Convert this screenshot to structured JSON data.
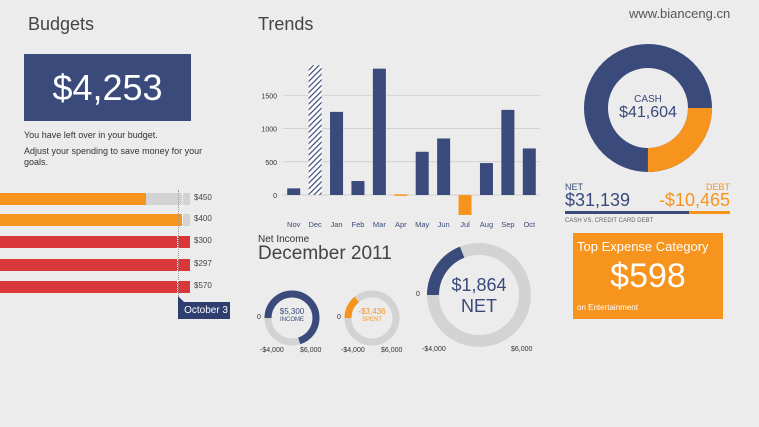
{
  "watermark": "www.bianceng.cn",
  "budgets": {
    "title": "Budgets",
    "amount": "$4,253",
    "line1": "You have left over in your budget.",
    "line2": "Adjust your spending to save money for your",
    "line3": "goals.",
    "bars": [
      {
        "label": "$450",
        "fraction": 0.77,
        "color": "#f7941d",
        "marker": 0.96
      },
      {
        "label": "$400",
        "fraction": 0.96,
        "color": "#f7941d",
        "marker": 0.96
      },
      {
        "label": "$300",
        "fraction": 1.0,
        "color": "#d9383a",
        "marker": 0.93
      },
      {
        "label": "$297",
        "fraction": 1.0,
        "color": "#d9383a",
        "marker": 0.93
      },
      {
        "label": "$570",
        "fraction": 1.0,
        "color": "#d9383a",
        "marker": 0.93
      }
    ],
    "date_badge": "October 3"
  },
  "trends": {
    "title": "Trends"
  },
  "chart_data": {
    "type": "bar",
    "categories": [
      "Nov",
      "Dec",
      "Jan",
      "Feb",
      "Mar",
      "Apr",
      "May",
      "Jun",
      "Jul",
      "Aug",
      "Sep",
      "Oct"
    ],
    "values": [
      100,
      1950,
      1250,
      210,
      1900,
      10,
      650,
      850,
      -300,
      480,
      1280,
      700
    ],
    "colors": [
      "#3a4a7a",
      "hatched",
      "#3a4a7a",
      "#3a4a7a",
      "#3a4a7a",
      "#f7941d",
      "#3a4a7a",
      "#3a4a7a",
      "#f7941d",
      "#3a4a7a",
      "#3a4a7a",
      "#3a4a7a"
    ],
    "yticks": [
      0,
      500,
      1000,
      1500
    ],
    "ylim": [
      -350,
      2000
    ],
    "grid": true
  },
  "net_income": {
    "label": "Net Income",
    "title": "December 2011",
    "income": {
      "amount": "$5,300",
      "caption": "INCOME",
      "fraction": 0.7,
      "min": "-$4,000",
      "max": "$6,000",
      "zero": "0"
    },
    "spent": {
      "amount": "-$3,436",
      "caption": "SPENT",
      "fraction": 0.14,
      "min": "-$4,000",
      "max": "$6,000",
      "zero": "0"
    },
    "net": {
      "amount": "$1,864",
      "caption": "NET",
      "fraction": 0.19,
      "min": "-$4,000",
      "max": "$6,000",
      "zero": "0"
    }
  },
  "cash": {
    "caption": "CASH",
    "amount": "$41,604",
    "net_fraction": 0.75,
    "net_label": "NET",
    "net_amount": "$31,139",
    "debt_label": "DEBT",
    "debt_amount": "-$10,465",
    "footnote": "CASH VS. CREDIT CARD DEBT"
  },
  "top_expense": {
    "title": "Top Expense Category",
    "amount": "$598",
    "caption": "on Entertainment"
  },
  "colors": {
    "navy": "#3a4a7a",
    "orange": "#f7941d",
    "red": "#d9383a",
    "track": "#d3d3d3"
  }
}
